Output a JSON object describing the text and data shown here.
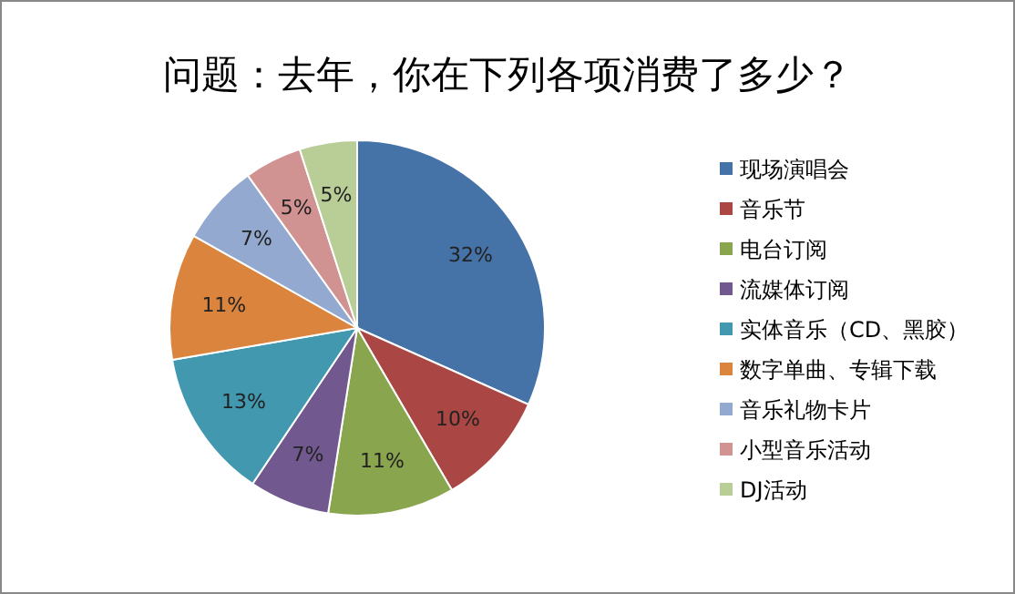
{
  "chart_data": {
    "type": "pie",
    "title": "问题：去年，你在下列各项消费了多少？",
    "categories": [
      "现场演唱会",
      "音乐节",
      "电台订阅",
      "流媒体订阅",
      "实体音乐（CD、黑胶）",
      "数字单曲、专辑下载",
      "音乐礼物卡片",
      "小型音乐活动",
      "DJ活动"
    ],
    "values": [
      32,
      10,
      11,
      7,
      13,
      11,
      7,
      5,
      5
    ],
    "value_labels": [
      "32%",
      "10%",
      "11%",
      "7%",
      "13%",
      "11%",
      "7%",
      "5%",
      "5%"
    ],
    "colors": [
      "#4572a7",
      "#aa4643",
      "#89a54e",
      "#71588f",
      "#4198af",
      "#db843d",
      "#93a9cf",
      "#d19392",
      "#b9cd96"
    ],
    "legend": "right"
  }
}
